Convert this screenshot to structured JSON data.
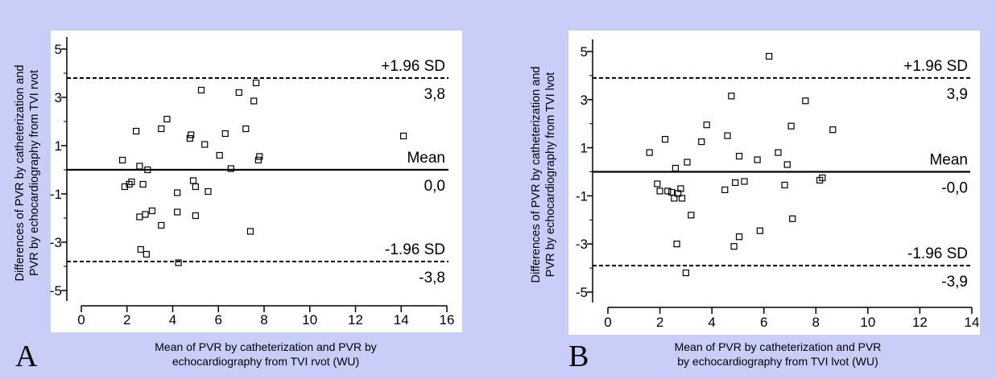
{
  "colors": {
    "background": "#c8cef8",
    "plot_background": "#ffffff",
    "ink": "#000000"
  },
  "chart_data": [
    {
      "type": "scatter",
      "panel_label": "A",
      "xlabel": [
        "Mean of PVR by catheterization and PVR by",
        "echocardiography from TVI rvot (WU)"
      ],
      "ylabel": [
        "Differences of PVR by catheterization and",
        "PVR by echocardiography from TVI rvot"
      ],
      "xlim": [
        0,
        16
      ],
      "ylim": [
        -5.5,
        5.5
      ],
      "xticks": [
        0,
        2,
        4,
        6,
        8,
        10,
        12,
        14,
        16
      ],
      "yticks": [
        -5,
        -3,
        -1,
        1,
        3,
        5
      ],
      "ytick_labels": [
        "-5",
        "-3",
        "-1",
        "1",
        "3",
        "5"
      ],
      "lines": [
        {
          "name": "+1.96 SD",
          "value": 3.8,
          "value_label": "3,8",
          "style": "dashed"
        },
        {
          "name": "Mean",
          "value": 0.0,
          "value_label": "0,0",
          "style": "solid"
        },
        {
          "name": "-1.96 SD",
          "value": -3.8,
          "value_label": "-3,8",
          "style": "dashed"
        }
      ],
      "points": [
        [
          1.8,
          0.4
        ],
        [
          1.9,
          -0.7
        ],
        [
          2.1,
          -0.6
        ],
        [
          2.2,
          -0.5
        ],
        [
          2.4,
          1.6
        ],
        [
          2.55,
          -1.95
        ],
        [
          2.55,
          0.15
        ],
        [
          2.6,
          -3.3
        ],
        [
          2.7,
          -0.6
        ],
        [
          2.8,
          -1.85
        ],
        [
          2.85,
          -3.5
        ],
        [
          2.9,
          0.0
        ],
        [
          3.1,
          -1.7
        ],
        [
          3.5,
          1.7
        ],
        [
          3.5,
          -2.3
        ],
        [
          3.75,
          2.1
        ],
        [
          4.2,
          -0.95
        ],
        [
          4.2,
          -1.75
        ],
        [
          4.25,
          -3.85
        ],
        [
          4.75,
          1.3
        ],
        [
          4.8,
          1.45
        ],
        [
          4.9,
          -0.45
        ],
        [
          5.0,
          -0.7
        ],
        [
          5.0,
          -1.9
        ],
        [
          5.25,
          3.3
        ],
        [
          5.4,
          1.05
        ],
        [
          5.55,
          -0.9
        ],
        [
          6.05,
          0.6
        ],
        [
          6.3,
          1.5
        ],
        [
          6.55,
          0.05
        ],
        [
          6.9,
          3.2
        ],
        [
          7.2,
          1.7
        ],
        [
          7.4,
          -2.55
        ],
        [
          7.55,
          2.85
        ],
        [
          7.65,
          3.6
        ],
        [
          7.75,
          0.4
        ],
        [
          7.8,
          0.55
        ],
        [
          14.1,
          1.4
        ]
      ]
    },
    {
      "type": "scatter",
      "panel_label": "B",
      "xlabel": [
        "Mean of PVR by catheterization and PVR",
        "by echocardiography from TVI lvot (WU)"
      ],
      "ylabel": [
        "Differences of PVR by catheterization and",
        "PVR by echocardiography from TVI lvot"
      ],
      "xlim": [
        0,
        14
      ],
      "ylim": [
        -5.5,
        5.5
      ],
      "xticks": [
        0,
        2,
        4,
        6,
        8,
        10,
        12,
        14
      ],
      "yticks": [
        -5,
        -3,
        -1,
        1,
        3,
        5
      ],
      "ytick_labels": [
        "-5",
        "-3",
        "-1",
        "1",
        "3",
        "5"
      ],
      "lines": [
        {
          "name": "+1.96 SD",
          "value": 3.9,
          "value_label": "3,9",
          "style": "dashed"
        },
        {
          "name": "Mean",
          "value": 0.0,
          "value_label": "-0,0",
          "style": "solid"
        },
        {
          "name": "-1.96 SD",
          "value": -3.9,
          "value_label": "-3,9",
          "style": "dashed"
        }
      ],
      "points": [
        [
          1.6,
          0.8
        ],
        [
          1.9,
          -0.5
        ],
        [
          2.0,
          -0.8
        ],
        [
          2.2,
          1.35
        ],
        [
          2.3,
          -0.8
        ],
        [
          2.45,
          -0.85
        ],
        [
          2.55,
          -1.1
        ],
        [
          2.6,
          0.15
        ],
        [
          2.65,
          -3.0
        ],
        [
          2.7,
          -0.9
        ],
        [
          2.8,
          -0.7
        ],
        [
          2.85,
          -1.1
        ],
        [
          3.0,
          -4.2
        ],
        [
          3.05,
          0.4
        ],
        [
          3.2,
          -1.8
        ],
        [
          3.6,
          1.25
        ],
        [
          3.8,
          1.95
        ],
        [
          4.5,
          -0.75
        ],
        [
          4.6,
          1.5
        ],
        [
          4.75,
          3.15
        ],
        [
          4.85,
          -3.1
        ],
        [
          4.9,
          -0.45
        ],
        [
          5.05,
          0.65
        ],
        [
          5.05,
          -2.7
        ],
        [
          5.25,
          -0.4
        ],
        [
          5.75,
          0.5
        ],
        [
          5.85,
          -2.45
        ],
        [
          6.2,
          4.8
        ],
        [
          6.55,
          0.8
        ],
        [
          6.8,
          -0.55
        ],
        [
          6.9,
          0.3
        ],
        [
          7.05,
          1.9
        ],
        [
          7.1,
          -1.95
        ],
        [
          7.6,
          2.95
        ],
        [
          8.15,
          -0.35
        ],
        [
          8.25,
          -0.25
        ],
        [
          8.65,
          1.75
        ]
      ]
    }
  ]
}
